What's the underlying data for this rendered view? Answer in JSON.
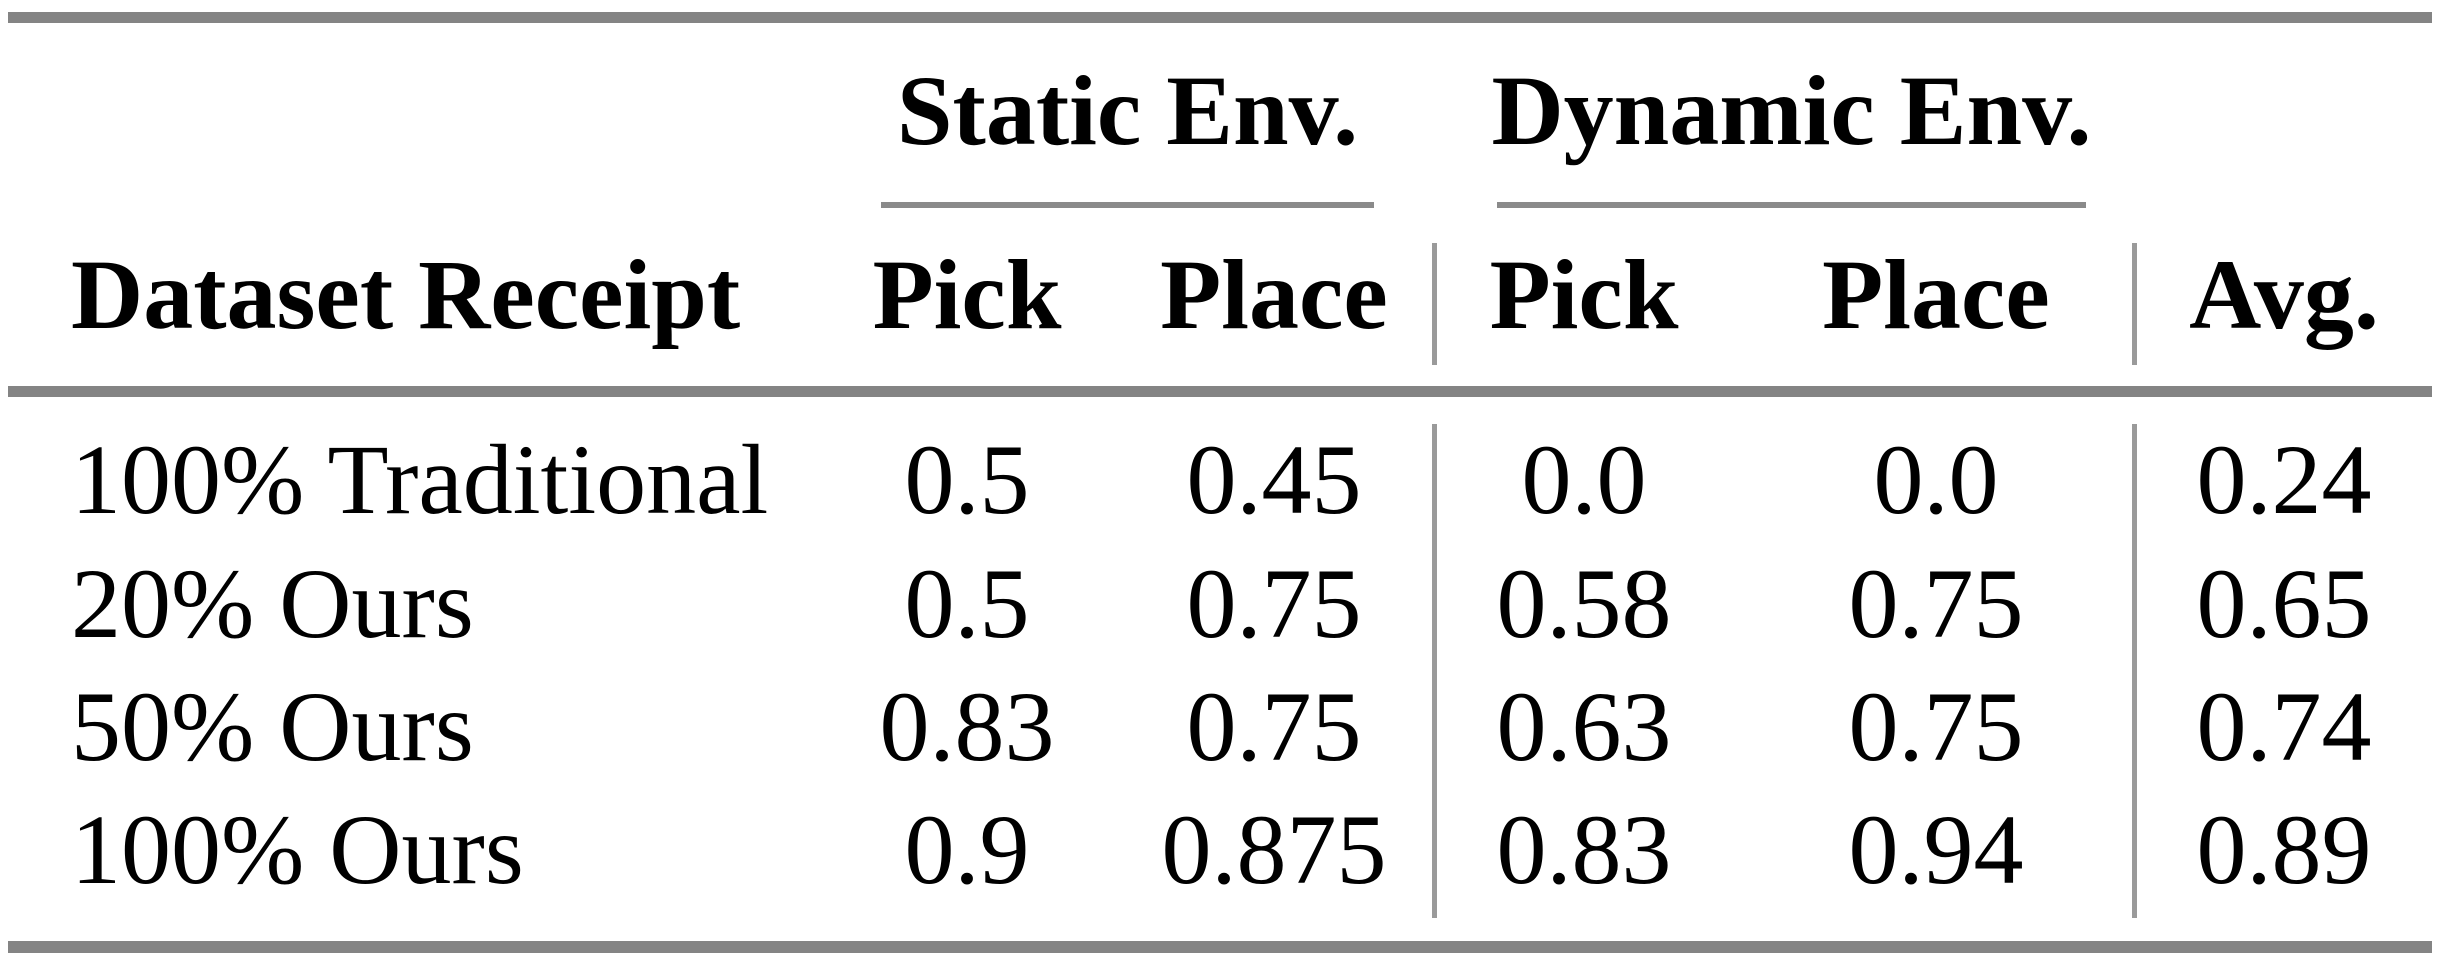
{
  "table": {
    "group_headers": {
      "static": "Static Env.",
      "dynamic": "Dynamic Env."
    },
    "column_headers": {
      "dataset": "Dataset Receipt",
      "static_pick": "Pick",
      "static_place": "Place",
      "dynamic_pick": "Pick",
      "dynamic_place": "Place",
      "avg": "Avg."
    },
    "rows": [
      {
        "dataset": "100% Traditional",
        "static_pick": "0.5",
        "static_place": "0.45",
        "dynamic_pick": "0.0",
        "dynamic_place": "0.0",
        "avg": "0.24"
      },
      {
        "dataset": "20% Ours",
        "static_pick": "0.5",
        "static_place": "0.75",
        "dynamic_pick": "0.58",
        "dynamic_place": "0.75",
        "avg": "0.65"
      },
      {
        "dataset": "50% Ours",
        "static_pick": "0.83",
        "static_place": "0.75",
        "dynamic_pick": "0.63",
        "dynamic_place": "0.75",
        "avg": "0.74"
      },
      {
        "dataset": "100% Ours",
        "static_pick": "0.9",
        "static_place": "0.875",
        "dynamic_pick": "0.83",
        "dynamic_place": "0.94",
        "avg": "0.89"
      }
    ],
    "colors": {
      "text": "#000000",
      "background": "#ffffff",
      "thick_rule": "#848484",
      "thin_rule": "#8a8a8a",
      "vertical_rule": "#9a9a9a"
    }
  },
  "chart_data": {
    "type": "table",
    "title": "",
    "columns": [
      "Dataset Receipt",
      "Static Env. Pick",
      "Static Env. Place",
      "Dynamic Env. Pick",
      "Dynamic Env. Place",
      "Avg."
    ],
    "rows": [
      [
        "100% Traditional",
        0.5,
        0.45,
        0.0,
        0.0,
        0.24
      ],
      [
        "20% Ours",
        0.5,
        0.75,
        0.58,
        0.75,
        0.65
      ],
      [
        "50% Ours",
        0.83,
        0.75,
        0.63,
        0.75,
        0.74
      ],
      [
        "100% Ours",
        0.9,
        0.875,
        0.83,
        0.94,
        0.89
      ]
    ]
  }
}
